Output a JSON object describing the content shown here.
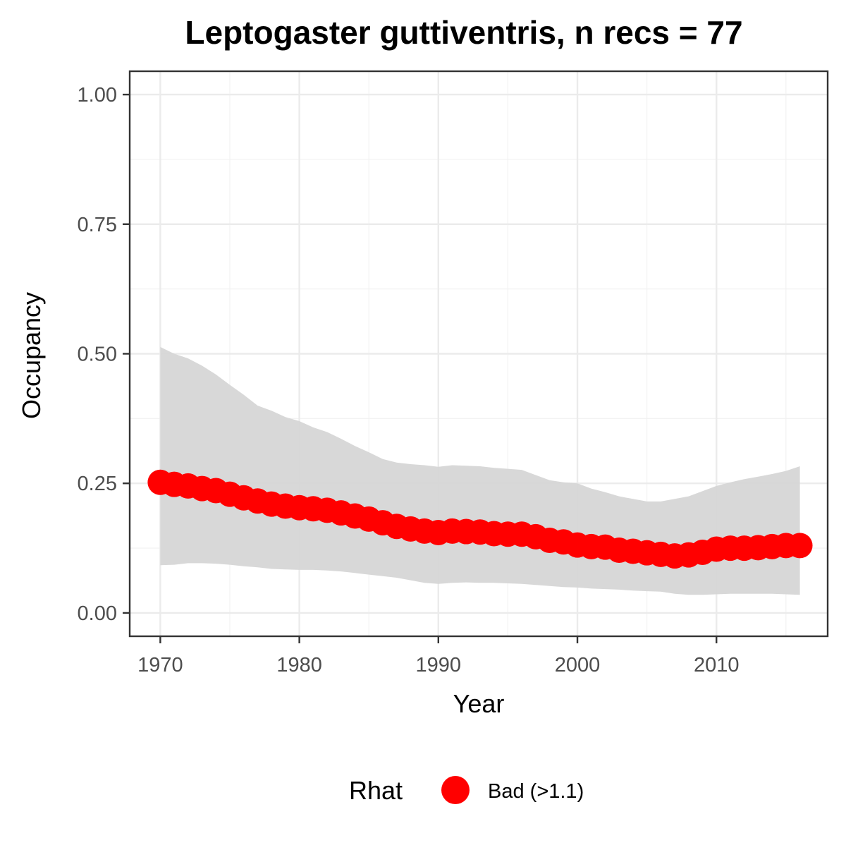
{
  "chart_data": {
    "type": "line",
    "title": "Leptogaster guttiventris, n recs = 77",
    "xlabel": "Year",
    "ylabel": "Occupancy",
    "xlim": [
      1967.8,
      2018
    ],
    "ylim": [
      -0.045,
      1.045
    ],
    "x_ticks": [
      1970,
      1980,
      1990,
      2000,
      2010
    ],
    "x_tick_labels": [
      "1970",
      "1980",
      "1990",
      "2000",
      "2010"
    ],
    "y_ticks": [
      0,
      0.25,
      0.5,
      0.75,
      1
    ],
    "y_tick_labels": [
      "0.00",
      "0.25",
      "0.50",
      "0.75",
      "1.00"
    ],
    "grid": true,
    "legend": {
      "title": "Rhat",
      "position": "bottom",
      "entries": [
        {
          "label": "Bad (>1.1)",
          "color": "#ff0000"
        }
      ]
    },
    "series": [
      {
        "name": "Bad (>1.1)",
        "color": "#ff0000",
        "ribbon_color": "#d6d6d6",
        "x": [
          1970,
          1971,
          1972,
          1973,
          1974,
          1975,
          1976,
          1977,
          1978,
          1979,
          1980,
          1981,
          1982,
          1983,
          1984,
          1985,
          1986,
          1987,
          1988,
          1989,
          1990,
          1991,
          1992,
          1993,
          1994,
          1995,
          1996,
          1997,
          1998,
          1999,
          2000,
          2001,
          2002,
          2003,
          2004,
          2005,
          2006,
          2007,
          2008,
          2009,
          2010,
          2011,
          2012,
          2013,
          2014,
          2015,
          2016
        ],
        "y": [
          0.252,
          0.248,
          0.245,
          0.24,
          0.236,
          0.229,
          0.222,
          0.216,
          0.21,
          0.206,
          0.203,
          0.201,
          0.198,
          0.193,
          0.187,
          0.181,
          0.174,
          0.167,
          0.162,
          0.158,
          0.155,
          0.158,
          0.157,
          0.156,
          0.153,
          0.152,
          0.152,
          0.147,
          0.14,
          0.137,
          0.131,
          0.128,
          0.127,
          0.121,
          0.119,
          0.116,
          0.113,
          0.11,
          0.112,
          0.117,
          0.123,
          0.125,
          0.125,
          0.126,
          0.128,
          0.13,
          0.13
        ],
        "lower": [
          0.092,
          0.093,
          0.096,
          0.096,
          0.095,
          0.093,
          0.09,
          0.088,
          0.085,
          0.084,
          0.083,
          0.083,
          0.082,
          0.08,
          0.077,
          0.074,
          0.071,
          0.068,
          0.063,
          0.058,
          0.056,
          0.058,
          0.059,
          0.058,
          0.058,
          0.057,
          0.056,
          0.054,
          0.052,
          0.05,
          0.049,
          0.047,
          0.046,
          0.045,
          0.043,
          0.042,
          0.041,
          0.037,
          0.035,
          0.035,
          0.036,
          0.037,
          0.037,
          0.037,
          0.037,
          0.036,
          0.035
        ],
        "upper": [
          0.513,
          0.5,
          0.491,
          0.477,
          0.46,
          0.44,
          0.421,
          0.4,
          0.39,
          0.378,
          0.37,
          0.358,
          0.349,
          0.336,
          0.322,
          0.31,
          0.297,
          0.29,
          0.287,
          0.285,
          0.282,
          0.285,
          0.284,
          0.283,
          0.28,
          0.278,
          0.276,
          0.266,
          0.256,
          0.252,
          0.25,
          0.24,
          0.233,
          0.225,
          0.22,
          0.215,
          0.215,
          0.22,
          0.225,
          0.235,
          0.245,
          0.252,
          0.258,
          0.263,
          0.268,
          0.274,
          0.283
        ]
      }
    ]
  }
}
